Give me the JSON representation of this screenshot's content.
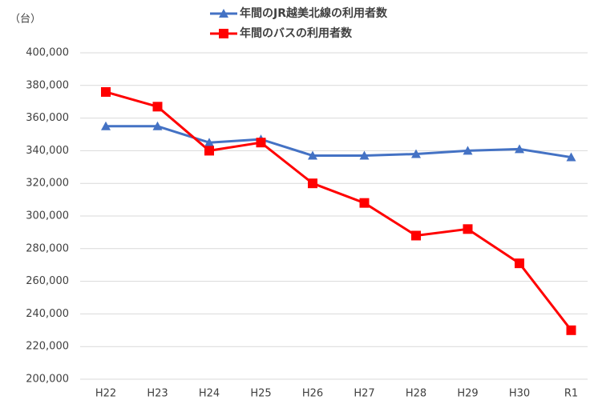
{
  "chart_data": {
    "type": "line",
    "unit_label": "（台）",
    "categories": [
      "H22",
      "H23",
      "H24",
      "H25",
      "H26",
      "H27",
      "H28",
      "H29",
      "H30",
      "R1"
    ],
    "series": [
      {
        "name": "年間のJR越美北線の利用者数",
        "color": "#4472c4",
        "marker": "triangle",
        "values": [
          355000,
          355000,
          345000,
          347000,
          337000,
          337000,
          338000,
          340000,
          341000,
          336000
        ]
      },
      {
        "name": "年間のバスの利用者数",
        "color": "#ff0000",
        "marker": "square",
        "values": [
          376000,
          367000,
          340000,
          345000,
          320000,
          308000,
          288000,
          292000,
          271000,
          230000
        ]
      }
    ],
    "ylim": [
      200000,
      400000
    ],
    "yticks": [
      {
        "value": 200000,
        "label": "200,000"
      },
      {
        "value": 220000,
        "label": "220,000"
      },
      {
        "value": 240000,
        "label": "240,000"
      },
      {
        "value": 260000,
        "label": "260,000"
      },
      {
        "value": 280000,
        "label": "280,000"
      },
      {
        "value": 300000,
        "label": "300,000"
      },
      {
        "value": 320000,
        "label": "320,000"
      },
      {
        "value": 340000,
        "label": "340,000"
      },
      {
        "value": 360000,
        "label": "360,000"
      },
      {
        "value": 380000,
        "label": "380,000"
      },
      {
        "value": 400000,
        "label": "400,000"
      }
    ],
    "grid": true,
    "legend": "top"
  }
}
